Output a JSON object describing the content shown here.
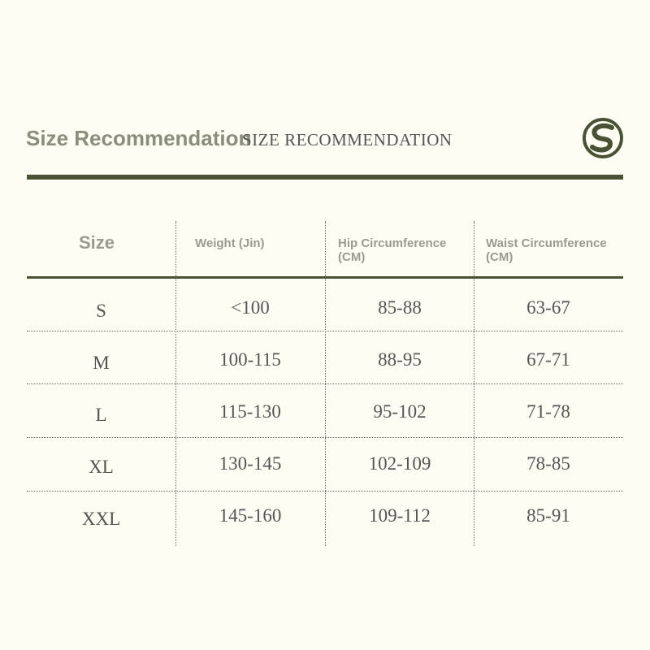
{
  "header": {
    "title": "Size Recommendation",
    "subtitle": "SIZE RECOMMENDATION"
  },
  "table": {
    "columns": [
      "Size",
      "Weight (Jin)",
      "Hip Circumference\n(CM)",
      "Waist Circumference\n(CM)"
    ],
    "rows": [
      [
        "S",
        "<100",
        "85-88",
        "63-67"
      ],
      [
        "M",
        "100-115",
        "88-95",
        "67-71"
      ],
      [
        "L",
        "115-130",
        "95-102",
        "71-78"
      ],
      [
        "XL",
        "130-145",
        "102-109",
        "78-85"
      ],
      [
        "XXL",
        "145-160",
        "109-112",
        "85-91"
      ]
    ]
  }
}
